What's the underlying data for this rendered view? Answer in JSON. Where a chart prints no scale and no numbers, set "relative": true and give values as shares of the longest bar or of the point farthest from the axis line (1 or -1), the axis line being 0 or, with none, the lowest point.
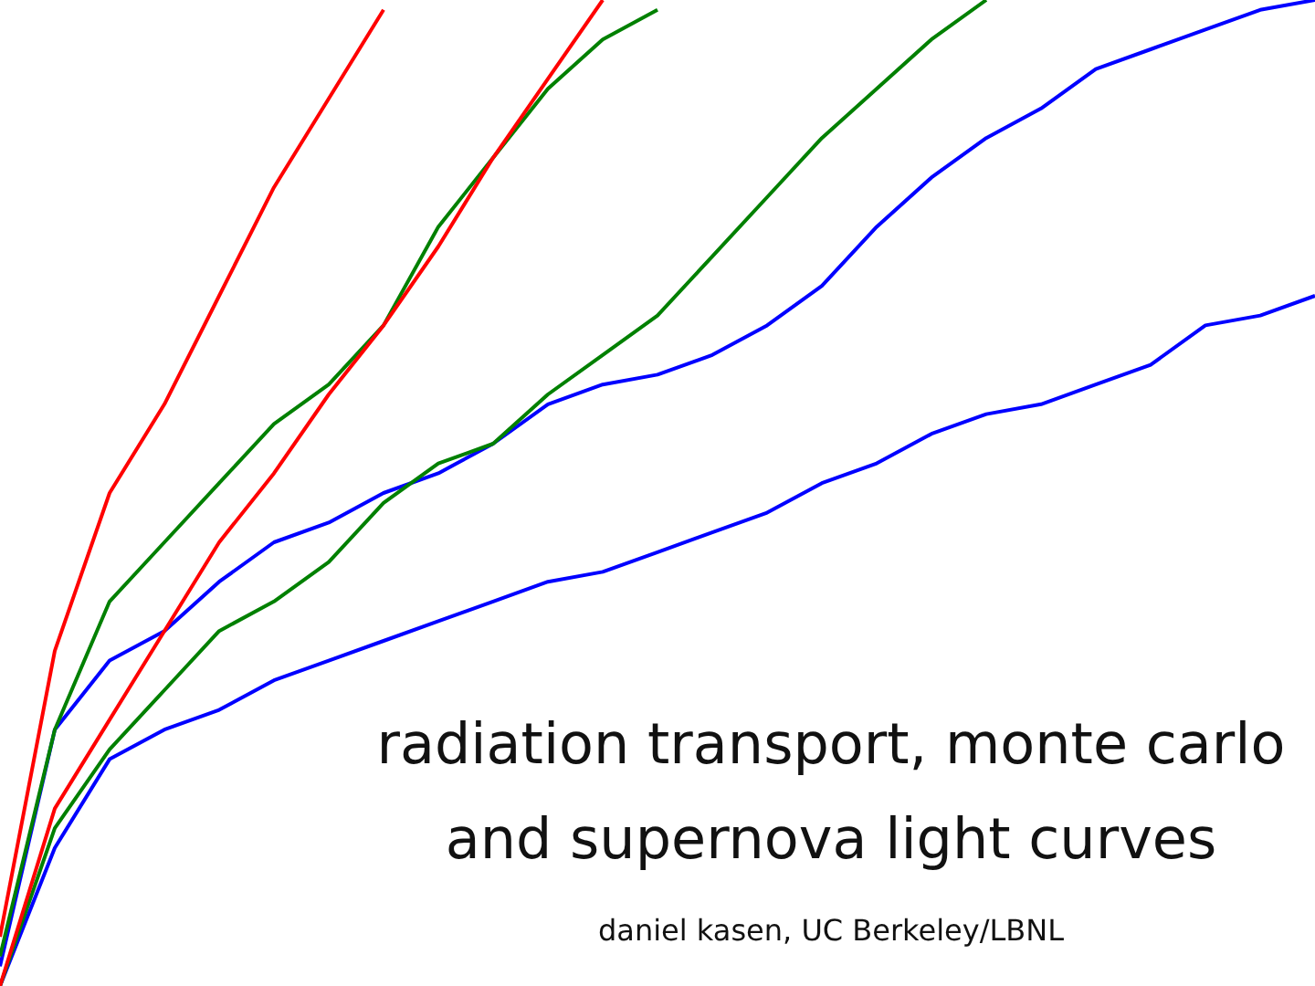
{
  "chart_data": {
    "type": "line",
    "relative": true,
    "title": "radiation transport, monte carlo and supernova light curves",
    "subtitle": "daniel kasen, UC Berkeley/LBNL",
    "legend": false,
    "grid": false,
    "marker": "none",
    "categories": [
      null,
      null,
      null,
      null,
      null,
      null,
      null,
      null,
      null,
      null,
      null,
      null,
      null,
      null,
      null,
      null,
      null,
      null,
      null,
      null,
      null,
      null,
      null,
      null,
      null
    ],
    "series": [
      {
        "color": "#ff0000",
        "values": [
          0,
          0.18,
          0.27,
          0.36,
          0.45,
          0.52,
          0.6,
          0.67,
          0.75,
          0.84,
          0.92,
          1.0,
          null,
          null,
          null,
          null,
          null,
          null,
          null,
          null,
          null,
          null,
          null,
          null,
          null
        ]
      },
      {
        "color": "#ff0000",
        "values": [
          0.05,
          0.34,
          0.5,
          0.59,
          0.7,
          0.81,
          0.9,
          0.99,
          null,
          null,
          null,
          null,
          null,
          null,
          null,
          null,
          null,
          null,
          null,
          null,
          null,
          null,
          null,
          null,
          null
        ]
      },
      {
        "color": "#008000",
        "values": [
          0,
          0.16,
          0.24,
          0.3,
          0.36,
          0.39,
          0.43,
          0.49,
          0.53,
          0.55,
          0.6,
          0.64,
          0.68,
          0.74,
          0.8,
          0.86,
          0.91,
          0.96,
          1.0,
          null,
          null,
          null,
          null,
          null,
          null
        ]
      },
      {
        "color": "#008000",
        "values": [
          0.03,
          0.26,
          0.39,
          0.45,
          0.51,
          0.57,
          0.61,
          0.67,
          0.77,
          0.84,
          0.91,
          0.96,
          0.99,
          null,
          null,
          null,
          null,
          null,
          null,
          null,
          null,
          null,
          null,
          null,
          null
        ]
      },
      {
        "color": "#0000ff",
        "values": [
          0,
          0.14,
          0.23,
          0.26,
          0.28,
          0.31,
          0.33,
          0.35,
          0.37,
          0.39,
          0.41,
          0.42,
          0.44,
          0.46,
          0.48,
          0.51,
          0.53,
          0.56,
          0.58,
          0.59,
          0.61,
          0.63,
          0.67,
          0.68,
          0.7
        ]
      },
      {
        "color": "#0000ff",
        "values": [
          0.02,
          0.26,
          0.33,
          0.36,
          0.41,
          0.45,
          0.47,
          0.5,
          0.52,
          0.55,
          0.59,
          0.61,
          0.62,
          0.64,
          0.67,
          0.71,
          0.77,
          0.82,
          0.86,
          0.89,
          0.93,
          0.95,
          0.97,
          0.99,
          1.0
        ]
      }
    ]
  }
}
